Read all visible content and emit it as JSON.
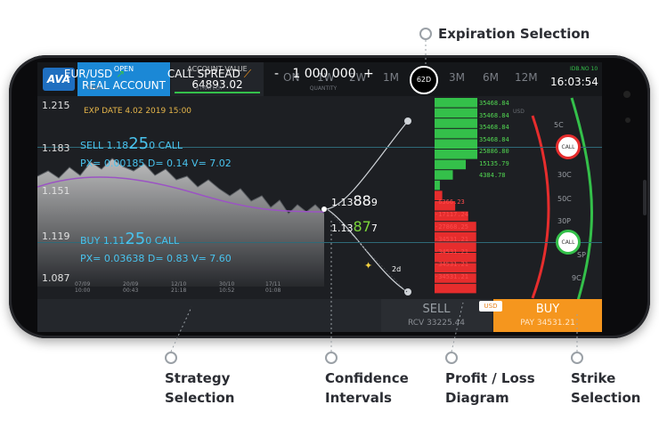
{
  "callouts": {
    "expiration": "Expiration Selection",
    "strategy_line1": "Strategy",
    "strategy_line2": "Selection",
    "confidence_line1": "Confidence",
    "confidence_line2": "Intervals",
    "profit_line1": "Profit / Loss",
    "profit_line2": "Diagram",
    "strike_line1": "Strike",
    "strike_line2": "Selection"
  },
  "header": {
    "logo": "AVA",
    "account_open_label": "OPEN",
    "account_type": "REAL ACCOUNT",
    "account_value_label": "ACCOUNT VALUE",
    "account_value": "64893.02",
    "timeframes": [
      "ON",
      "1W",
      "2W",
      "1M",
      "3M",
      "6M",
      "12M"
    ],
    "active_timeframe": "62D",
    "clock": "16:03:54",
    "clock_small": "IDB.NO 10"
  },
  "chart": {
    "y_labels": [
      "1.215",
      "1.183",
      "1.151",
      "1.119",
      "1.087"
    ],
    "x_labels": [
      "07/09\n10:00",
      "20/09\n00:43",
      "12/10\n21:18",
      "30/10\n10:52",
      "17/11\n01:08"
    ],
    "exp_date": "EXP DATE 4.02 2019 15:00",
    "sell_call_prefix": "SELL 1.18",
    "sell_call_big": "25",
    "sell_call_suffix": "0 CALL",
    "sell_px": "PX= 0.00185 D= 0.14 V= 7.02",
    "buy_call_prefix": "BUY 1.11",
    "buy_call_big": "25",
    "buy_call_suffix": "0 CALL",
    "buy_px": "PX= 0.03638 D= 0.83 V= 7.60",
    "bid_prefix": "1.13",
    "bid_big": "88",
    "bid_suffix": "9",
    "ask_prefix": "1.13",
    "ask_big": "87",
    "ask_suffix": "7",
    "period_label": "2d",
    "usd_small": "USD"
  },
  "pl": {
    "green_values": [
      "35468.84",
      "35468.84",
      "35468.84",
      "35468.84",
      "25886.80",
      "15135.79",
      "4384.78"
    ],
    "red_values": [
      "-6366.23",
      "-17117.24",
      "-27868.25",
      "-34531.21",
      "-34531.21",
      "-34531.21",
      "-34531.21"
    ]
  },
  "strikes": {
    "labels": [
      "5C",
      "30C",
      "50C",
      "30P",
      "SP",
      "9C"
    ],
    "call_badge": "CALL"
  },
  "bottom": {
    "pair": "EUR/USD",
    "pair_sub": "REAL",
    "strategy": "CALL SPREAD",
    "strategy_sub": "STRATEGY",
    "minus": "-",
    "quantity": "1 000 000",
    "plus": "+",
    "quantity_sub": "QUANTITY",
    "sell_label": "SELL",
    "sell_sub": "RCV 33225.44",
    "currency_badge": "USD",
    "buy_label": "BUY",
    "buy_sub": "PAY 34531.21"
  },
  "colors": {
    "accent": "#1b88d6",
    "buy": "#f5961e",
    "profit": "#34c04a",
    "loss": "#e62d2d",
    "info": "#49c3ee"
  }
}
